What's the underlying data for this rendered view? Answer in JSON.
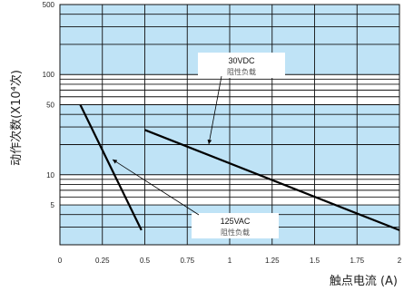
{
  "chart_data": {
    "type": "line",
    "xlabel": "触点电流 (A)",
    "ylabel": "动作次数(X10⁴次)",
    "xlim": [
      0,
      2
    ],
    "ylim": [
      2,
      500
    ],
    "y_scale": "log",
    "grid": true,
    "x_ticks": [
      "0",
      "0.25",
      "0.5",
      "0.75",
      "1",
      "1.25",
      "1.5",
      "1.75",
      "2"
    ],
    "y_ticks": [
      {
        "value": 5,
        "label": "5"
      },
      {
        "value": 10,
        "label": "10"
      },
      {
        "value": 50,
        "label": "50"
      },
      {
        "value": 100,
        "label": "100"
      },
      {
        "value": 500,
        "label": "500"
      }
    ],
    "series": [
      {
        "name": "30VDC 阻性负载",
        "x": [
          0.5,
          2.0
        ],
        "y": [
          28,
          2.8
        ]
      },
      {
        "name": "125VAC 阻性负载",
        "x": [
          0.12,
          0.48
        ],
        "y": [
          50,
          2.8
        ]
      }
    ],
    "annotations": [
      {
        "title": "30VDC",
        "subtitle": "阻性负载",
        "points_to": "30VDC 阻性负载"
      },
      {
        "title": "125VAC",
        "subtitle": "阻性负载",
        "points_to": "125VAC 阻性负载"
      }
    ],
    "colors": {
      "band": "#bfe3f6",
      "plot_bg": "#ffffff",
      "grid": "#111111",
      "line": "#000000"
    }
  }
}
